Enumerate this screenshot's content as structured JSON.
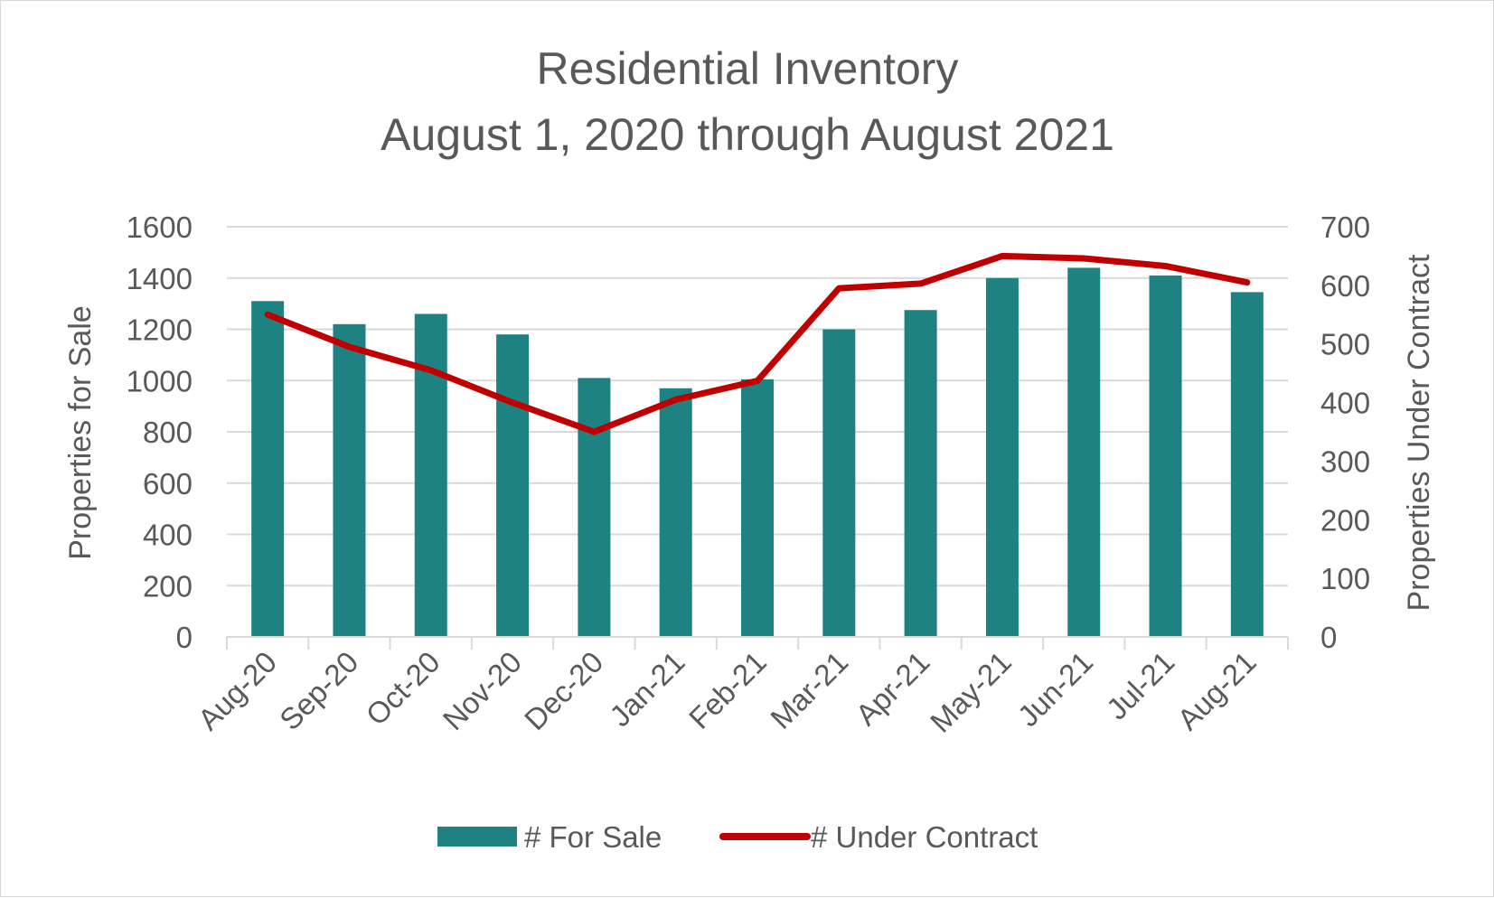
{
  "chart_data": {
    "type": "bar",
    "title": "Residential Inventory",
    "subtitle": "August 1, 2020 through August 2021",
    "categories": [
      "Aug-20",
      "Sep-20",
      "Oct-20",
      "Nov-20",
      "Dec-20",
      "Jan-21",
      "Feb-21",
      "Mar-21",
      "Apr-21",
      "May-21",
      "Jun-21",
      "Jul-21",
      "Aug-21"
    ],
    "series": [
      {
        "name": "# For Sale",
        "type": "bar",
        "axis": "left",
        "color": "#1f8282",
        "values": [
          1310,
          1220,
          1260,
          1180,
          1010,
          970,
          1005,
          1200,
          1275,
          1400,
          1440,
          1410,
          1345
        ]
      },
      {
        "name": "# Under Contract",
        "type": "line",
        "axis": "right",
        "color": "#c00000",
        "values": [
          550,
          495,
          455,
          400,
          350,
          405,
          437,
          595,
          603,
          650,
          646,
          633,
          605
        ]
      }
    ],
    "ylabel": "Properties for Sale",
    "y2label": "Properties Under Contract",
    "ylim": [
      0,
      1600
    ],
    "y2lim": [
      0,
      700
    ],
    "yticks": [
      "0",
      "200",
      "400",
      "600",
      "800",
      "1000",
      "1200",
      "1400",
      "1600"
    ],
    "y2ticks": [
      "0",
      "100",
      "200",
      "300",
      "400",
      "500",
      "600",
      "700"
    ],
    "grid": true,
    "legend_position": "bottom"
  }
}
